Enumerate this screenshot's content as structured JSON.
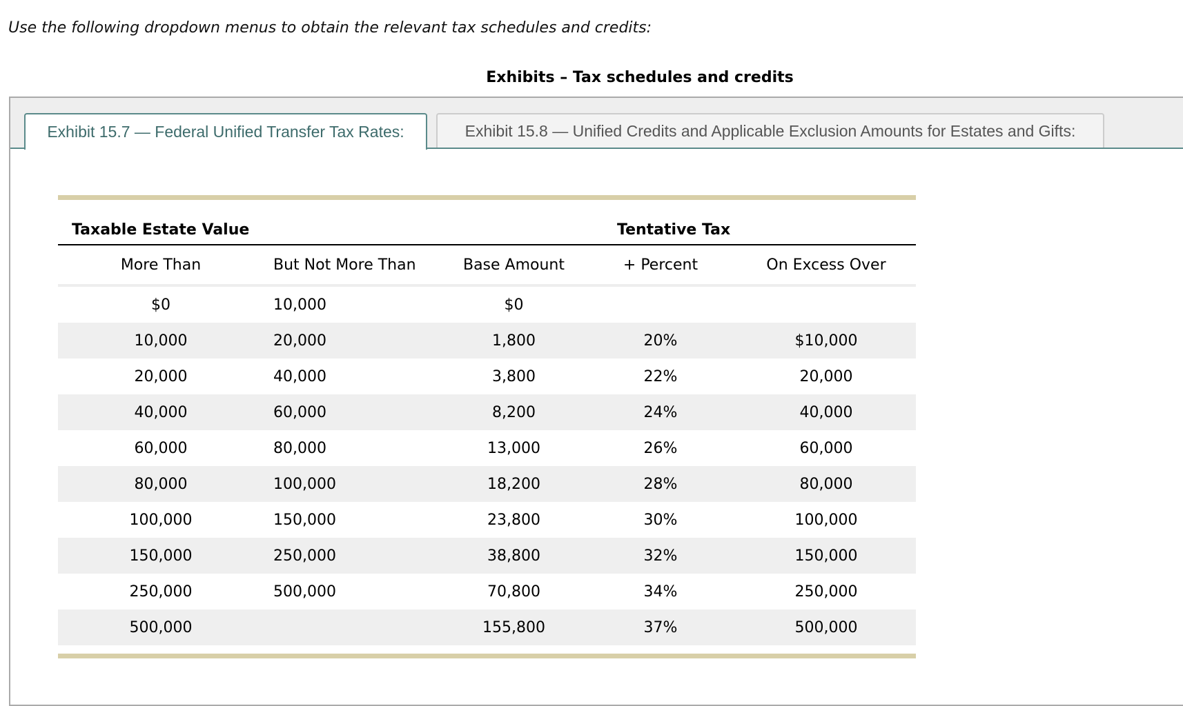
{
  "intro": "Use the following dropdown menus to obtain the relevant tax schedules and credits:",
  "heading": "Exhibits – Tax schedules and credits",
  "tabs": [
    {
      "label": "Exhibit 15.7 — Federal Unified Transfer Tax Rates:",
      "active": true
    },
    {
      "label": "Exhibit 15.8 — Unified Credits and Applicable Exclusion Amounts for Estates and Gifts:",
      "active": false
    }
  ],
  "colors": {
    "accent": "#5a8a8a",
    "rule": "#d8cfa8",
    "alt_row": "#efefef"
  },
  "table": {
    "group_headers": [
      "Taxable Estate Value",
      "Tentative Tax"
    ],
    "columns": [
      "More Than",
      "But Not More Than",
      "Base Amount",
      "+ Percent",
      "On Excess Over"
    ],
    "rows": [
      [
        "$0",
        "10,000",
        "$0",
        "",
        ""
      ],
      [
        "10,000",
        "20,000",
        "1,800",
        "20%",
        "$10,000"
      ],
      [
        "20,000",
        "40,000",
        "3,800",
        "22%",
        "20,000"
      ],
      [
        "40,000",
        "60,000",
        "8,200",
        "24%",
        "40,000"
      ],
      [
        "60,000",
        "80,000",
        "13,000",
        "26%",
        "60,000"
      ],
      [
        "80,000",
        "100,000",
        "18,200",
        "28%",
        "80,000"
      ],
      [
        "100,000",
        "150,000",
        "23,800",
        "30%",
        "100,000"
      ],
      [
        "150,000",
        "250,000",
        "38,800",
        "32%",
        "150,000"
      ],
      [
        "250,000",
        "500,000",
        "70,800",
        "34%",
        "250,000"
      ],
      [
        "500,000",
        "",
        "155,800",
        "37%",
        "500,000"
      ]
    ]
  }
}
